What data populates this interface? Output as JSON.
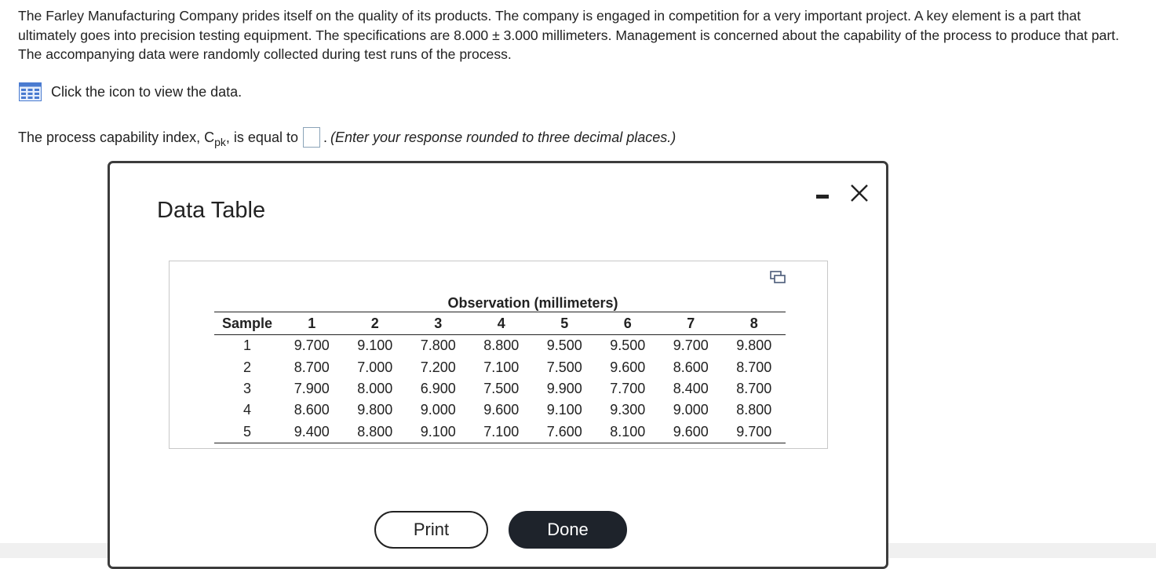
{
  "problem": {
    "text": "The Farley Manufacturing Company prides itself on the quality of its products. The company is engaged in competition for a very important project. A key element is a part that ultimately goes into precision testing equipment. The specifications are 8.000 ± 3.000 millimeters. Management is concerned about the capability of the process to produce that part. The accompanying data were randomly collected during test runs of the process."
  },
  "data_link": {
    "label": "Click the icon to view the data.",
    "icon": "table-grid-icon"
  },
  "answer": {
    "prefix": "The process capability index, C",
    "subscript": "pk",
    "suffix": ", is equal to",
    "period": ".",
    "hint": "(Enter your response rounded to three decimal places.)",
    "value": ""
  },
  "dialog": {
    "title": "Data Table",
    "table": {
      "group_header": "Observation (millimeters)",
      "columns": [
        "Sample",
        "1",
        "2",
        "3",
        "4",
        "5",
        "6",
        "7",
        "8"
      ],
      "rows": [
        [
          "1",
          "9.700",
          "9.100",
          "7.800",
          "8.800",
          "9.500",
          "9.500",
          "9.700",
          "9.800"
        ],
        [
          "2",
          "8.700",
          "7.000",
          "7.200",
          "7.100",
          "7.500",
          "9.600",
          "8.600",
          "8.700"
        ],
        [
          "3",
          "7.900",
          "8.000",
          "6.900",
          "7.500",
          "9.900",
          "7.700",
          "8.400",
          "8.700"
        ],
        [
          "4",
          "8.600",
          "9.800",
          "9.000",
          "9.600",
          "9.100",
          "9.300",
          "9.000",
          "8.800"
        ],
        [
          "5",
          "9.400",
          "8.800",
          "9.100",
          "7.100",
          "7.600",
          "8.100",
          "9.600",
          "9.700"
        ]
      ]
    },
    "buttons": {
      "print": "Print",
      "done": "Done"
    }
  }
}
